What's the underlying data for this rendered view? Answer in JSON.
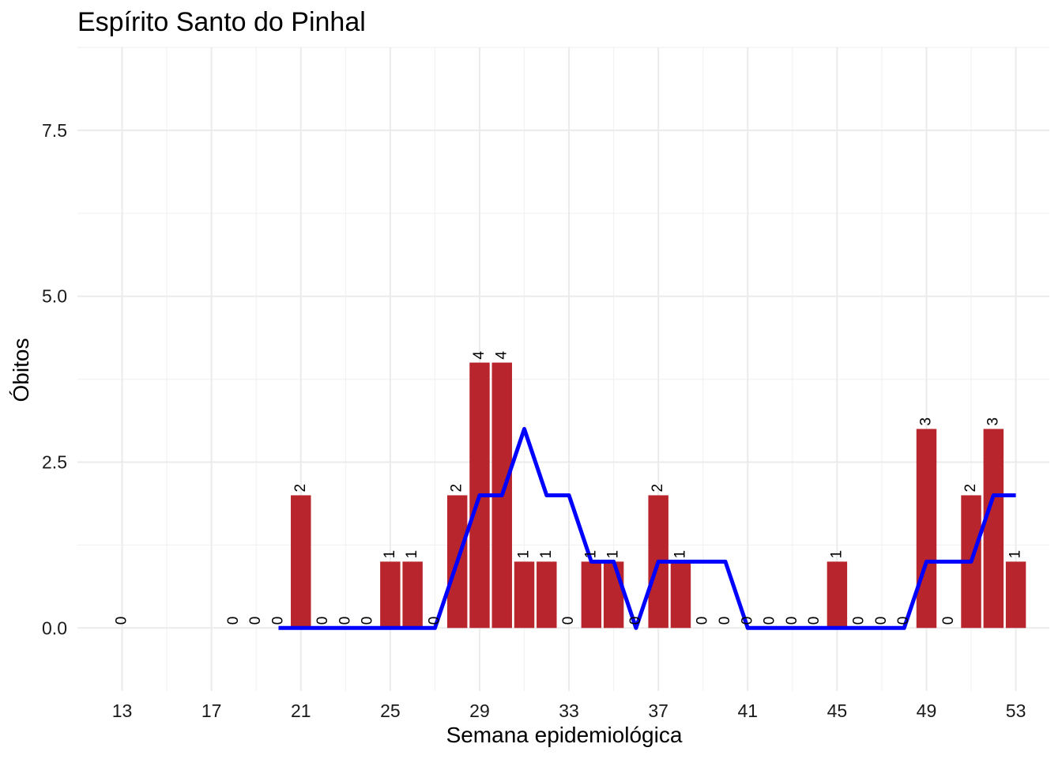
{
  "chart_data": {
    "type": "bar",
    "title": "Espírito Santo do Pinhal",
    "xlabel": "Semana epidemiológica",
    "ylabel": "Óbitos",
    "x_ticks": [
      13,
      17,
      21,
      25,
      29,
      33,
      37,
      41,
      45,
      49,
      53
    ],
    "y_ticks": [
      "0.0",
      "2.5",
      "5.0",
      "7.5"
    ],
    "xlim": [
      11,
      54.5
    ],
    "ylim": [
      -0.95,
      8.75
    ],
    "bar_color": "#b8252d",
    "line_color": "#0000ff",
    "grid": true,
    "series": [
      {
        "type": "bar",
        "x": [
          13,
          18,
          19,
          20,
          21,
          22,
          23,
          24,
          25,
          26,
          27,
          28,
          29,
          30,
          31,
          32,
          33,
          34,
          35,
          36,
          37,
          38,
          39,
          40,
          41,
          42,
          43,
          44,
          45,
          46,
          47,
          48,
          49,
          50,
          51,
          52,
          53
        ],
        "values": [
          0,
          0,
          0,
          0,
          2,
          0,
          0,
          0,
          1,
          1,
          0,
          2,
          4,
          4,
          1,
          1,
          0,
          1,
          1,
          0,
          2,
          1,
          0,
          0,
          0,
          0,
          0,
          0,
          1,
          0,
          0,
          0,
          3,
          0,
          2,
          3,
          1
        ],
        "labels": [
          "0",
          "0",
          "0",
          "0",
          "2",
          "0",
          "0",
          "0",
          "1",
          "1",
          "0",
          "2",
          "4",
          "4",
          "1",
          "1",
          "0",
          "1",
          "1",
          "0",
          "2",
          "1",
          "0",
          "0",
          "0",
          "0",
          "0",
          "0",
          "1",
          "0",
          "0",
          "0",
          "3",
          "0",
          "2",
          "3",
          "1"
        ]
      },
      {
        "type": "line",
        "x": [
          20,
          21,
          22,
          23,
          24,
          25,
          26,
          27,
          28,
          29,
          30,
          31,
          32,
          33,
          34,
          35,
          36,
          37,
          38,
          39,
          40,
          41,
          42,
          43,
          44,
          45,
          46,
          47,
          48,
          49,
          50,
          51,
          52,
          53
        ],
        "values": [
          0,
          0,
          0,
          0,
          0,
          0,
          0,
          0,
          1,
          2,
          2,
          3,
          2,
          2,
          1,
          1,
          0,
          1,
          1,
          1,
          1,
          0,
          0,
          0,
          0,
          0,
          0,
          0,
          0,
          1,
          1,
          1,
          2,
          2
        ]
      }
    ]
  }
}
